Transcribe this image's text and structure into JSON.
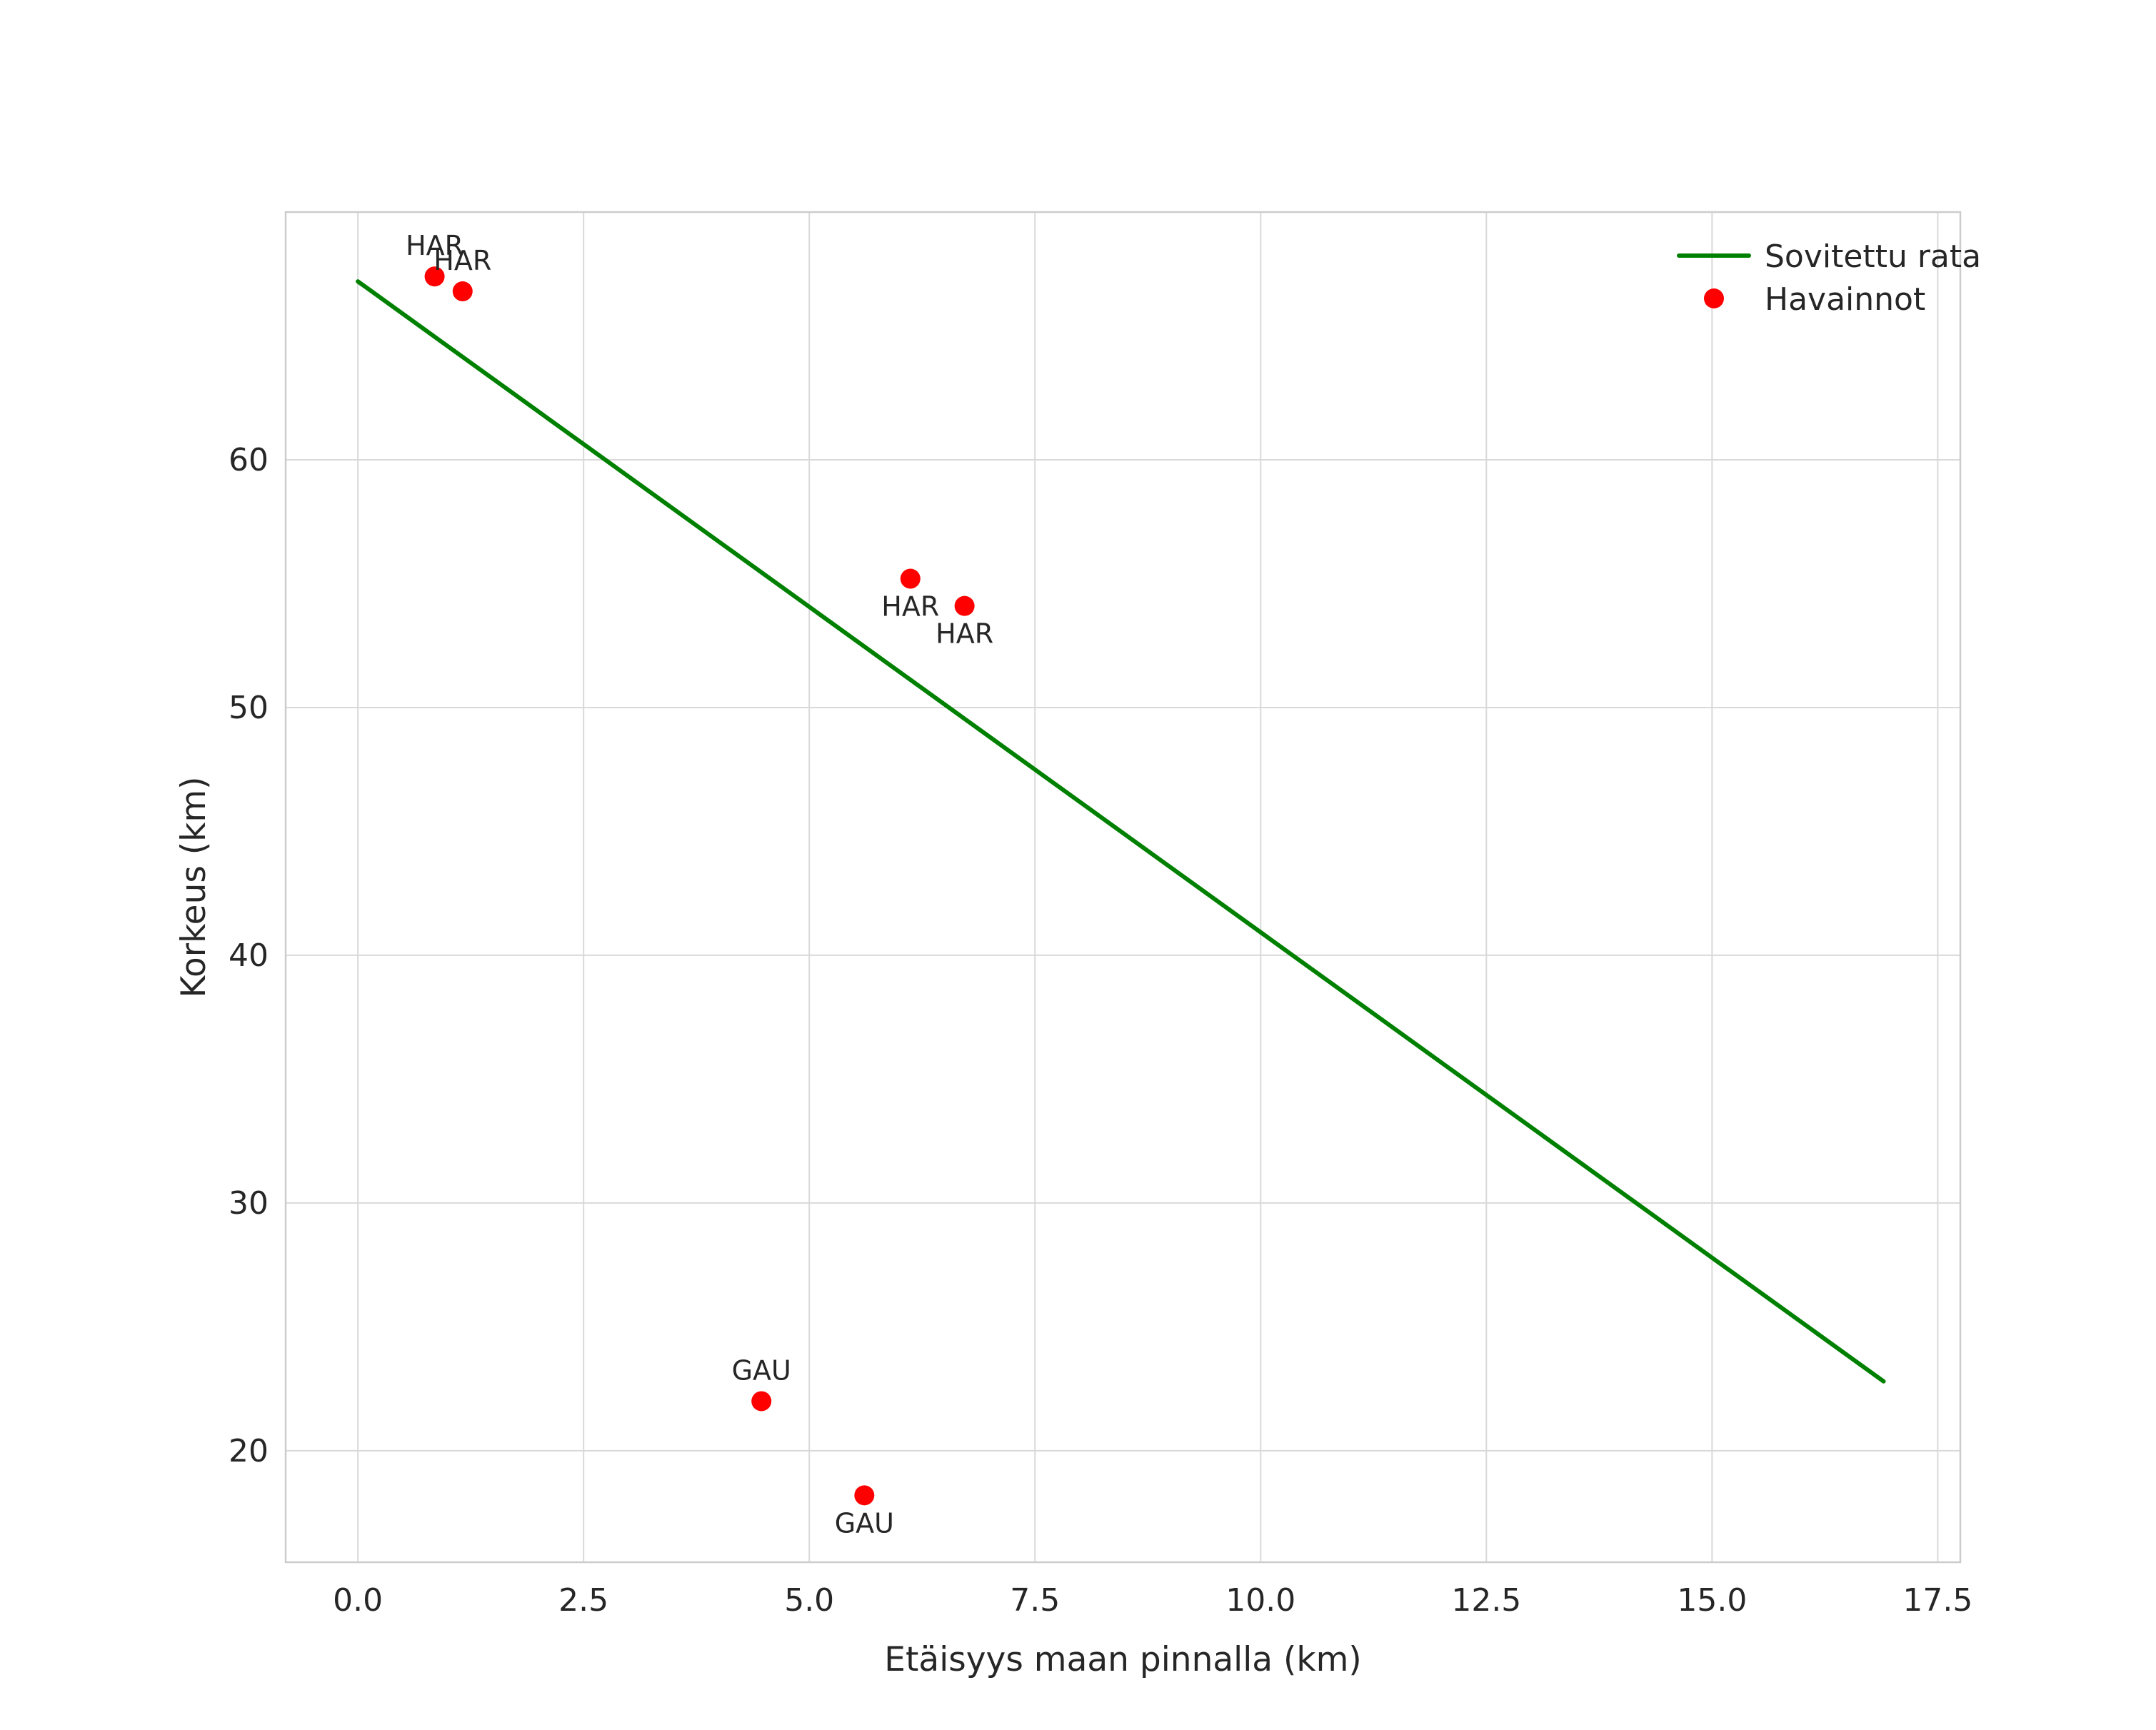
{
  "chart_data": {
    "type": "scatter",
    "title": "",
    "xlabel": "Etäisyys maan pinnalla (km)",
    "ylabel": "Korkeus (km)",
    "xlim": [
      -0.8,
      17.75
    ],
    "ylim": [
      15.5,
      70.0
    ],
    "xticks": [
      0.0,
      2.5,
      5.0,
      7.5,
      10.0,
      12.5,
      15.0,
      17.5
    ],
    "xtick_labels": [
      "0.0",
      "2.5",
      "5.0",
      "7.5",
      "10.0",
      "12.5",
      "15.0",
      "17.5"
    ],
    "yticks": [
      20,
      30,
      40,
      50,
      60
    ],
    "ytick_labels": [
      "20",
      "30",
      "40",
      "50",
      "60"
    ],
    "grid": true,
    "colors": {
      "fit_line": "#008000",
      "points": "#ff0000",
      "grid": "#d9d9d9",
      "spine": "#cccccc",
      "text": "#262626"
    },
    "legend": {
      "position": "upper-right",
      "entries": [
        {
          "label": "Sovitettu rata",
          "type": "line",
          "color": "#008000"
        },
        {
          "label": "Havainnot",
          "type": "point",
          "color": "#ff0000"
        }
      ]
    },
    "series": [
      {
        "name": "Sovitettu rata",
        "type": "line",
        "color": "#008000",
        "points": [
          [
            0.0,
            67.2
          ],
          [
            16.9,
            22.8
          ]
        ]
      },
      {
        "name": "Havainnot",
        "type": "scatter",
        "color": "#ff0000",
        "points": [
          {
            "x": 0.85,
            "y": 67.4,
            "label": "HAR",
            "label_pos": "above"
          },
          {
            "x": 1.16,
            "y": 66.8,
            "label": "HAR",
            "label_pos": "above"
          },
          {
            "x": 6.12,
            "y": 55.2,
            "label": "HAR",
            "label_pos": "below"
          },
          {
            "x": 6.72,
            "y": 54.1,
            "label": "HAR",
            "label_pos": "below"
          },
          {
            "x": 4.47,
            "y": 22.0,
            "label": "GAU",
            "label_pos": "above"
          },
          {
            "x": 5.61,
            "y": 18.2,
            "label": "GAU",
            "label_pos": "below"
          }
        ]
      }
    ]
  }
}
